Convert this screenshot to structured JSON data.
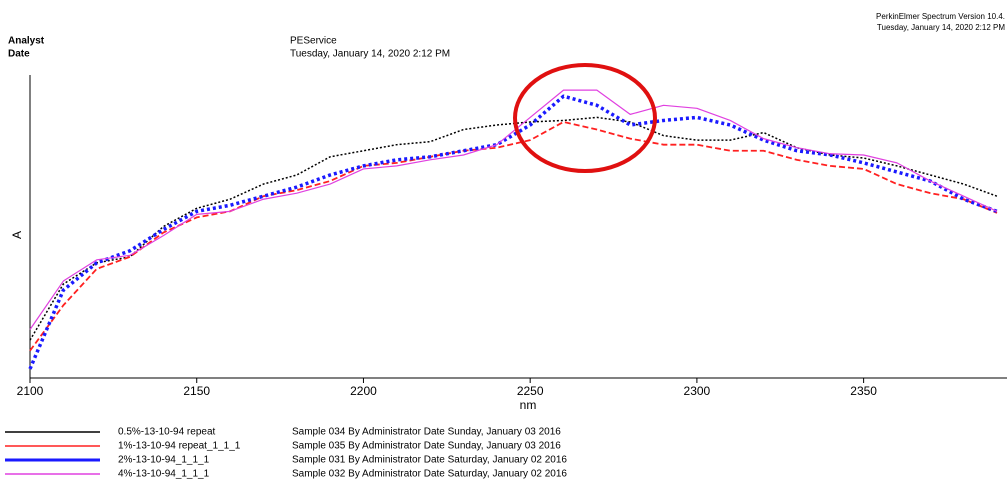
{
  "header": {
    "analyst_label": "Analyst",
    "date_label": "Date",
    "analyst": "PEService",
    "date": "Tuesday, January 14, 2020 2:12 PM",
    "software": "PerkinElmer Spectrum Version 10.4.",
    "printed": "Tuesday, January 14, 2020 2:12 PM"
  },
  "chart_data": {
    "type": "line",
    "xlabel": "nm",
    "ylabel": "A",
    "x": [
      2100,
      2110,
      2120,
      2130,
      2140,
      2150,
      2160,
      2170,
      2180,
      2190,
      2200,
      2210,
      2220,
      2230,
      2240,
      2250,
      2260,
      2270,
      2280,
      2290,
      2300,
      2310,
      2320,
      2330,
      2340,
      2350,
      2360,
      2370,
      2380,
      2390
    ],
    "xlim": [
      2100,
      2393
    ],
    "xticks": [
      2100,
      2150,
      2200,
      2250,
      2300,
      2350
    ],
    "ylim": [
      0,
      100
    ],
    "series": [
      {
        "name": "0.5%-13-10-94 repeat",
        "description": "Sample 034 By Administrator Date Sunday, January 03 2016",
        "color": "#000000",
        "dash": "dotted",
        "values": [
          12.5,
          31,
          38,
          40,
          50,
          56,
          59,
          64,
          67,
          73,
          75,
          77,
          78,
          82,
          83.5,
          84.5,
          85,
          86,
          84.5,
          80,
          78.5,
          78.5,
          81,
          76,
          73.6,
          72.6,
          70,
          67,
          64,
          60
        ]
      },
      {
        "name": "1%-13-10-94 repeat_1_1_1",
        "description": "Sample 035 By Administrator Date Sunday, January 03 2016",
        "color": "#ff2020",
        "dash": "dashed",
        "values": [
          9,
          24,
          36,
          40,
          48,
          53,
          55,
          60,
          62,
          65,
          70,
          71,
          73,
          75,
          76,
          78.5,
          84.5,
          82,
          79,
          77,
          77,
          75,
          75,
          72,
          70,
          69,
          64,
          61,
          59,
          54.5
        ]
      },
      {
        "name": "2%-13-10-94_1_1_1",
        "description": "Sample 031 By Administrator Date Saturday, January 02 2016",
        "color": "#1a1aff",
        "dash": "thick-dotted",
        "values": [
          3,
          29,
          38,
          42,
          49,
          55,
          57,
          60,
          63,
          67,
          70,
          72,
          73,
          75,
          77,
          83.5,
          93,
          90,
          83.5,
          85,
          86,
          83.5,
          78.5,
          75,
          73.6,
          71,
          68,
          65,
          59,
          55
        ]
      },
      {
        "name": "4%-13-10-94_1_1_1",
        "description": "Sample 032 By Administrator Date Saturday, January 02 2016",
        "color": "#e040e0",
        "dash": "solid",
        "values": [
          16,
          32,
          39,
          40.5,
          47,
          54,
          55,
          59,
          61,
          64,
          69,
          70,
          72,
          73.6,
          77,
          86,
          95,
          95,
          87,
          90,
          89,
          85,
          79,
          76,
          74,
          73.6,
          71,
          65,
          60,
          55
        ]
      }
    ]
  }
}
